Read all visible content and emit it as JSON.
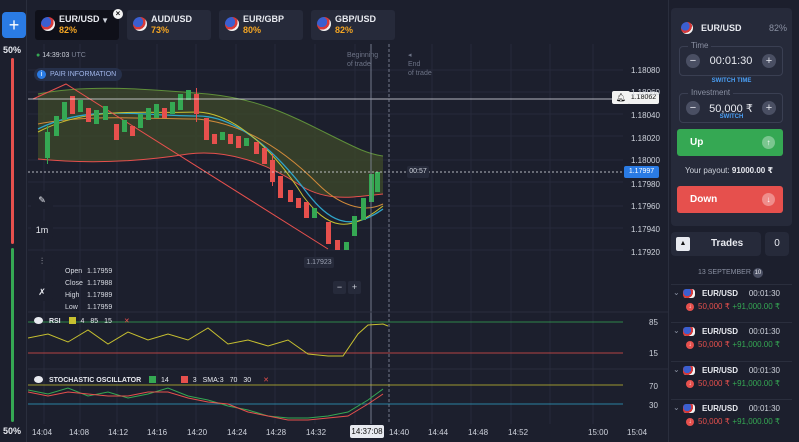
{
  "sidebar": {
    "add_label": "+",
    "top_percent": "50%",
    "bottom_percent": "50%"
  },
  "tabs": [
    {
      "name": "EUR/USD",
      "payout": "82%"
    },
    {
      "name": "AUD/USD",
      "payout": "73%"
    },
    {
      "name": "EUR/GBP",
      "payout": "80%"
    },
    {
      "name": "GBP/USD",
      "payout": "82%"
    }
  ],
  "chart": {
    "clock": "14:39:03",
    "clock_zone": "UTC",
    "pair_info_label": "PAIR INFORMATION",
    "timeframe": "1m",
    "begin_label_1": "Beginning",
    "begin_label_2": "of trade",
    "end_label_1": "End",
    "end_label_2": "of trade",
    "ohlc": {
      "open_label": "Open",
      "open": "1.17959",
      "close_label": "Close",
      "close": "1.17988",
      "high_label": "High",
      "high": "1.17989",
      "low_label": "Low",
      "low": "1.17959"
    },
    "low_marker": "1.17923",
    "countdown": "00:57",
    "current_price": "1.17997",
    "trade_price": "1.18062",
    "y_ticks": [
      "1.18080",
      "1.18060",
      "1.18040",
      "1.18020",
      "1.18000",
      "1.17980",
      "1.17960",
      "1.17940",
      "1.17920"
    ],
    "x_ticks": [
      "14:04",
      "14:08",
      "14:12",
      "14:16",
      "14:20",
      "14:24",
      "14:28",
      "14:32",
      "14:40",
      "14:44",
      "14:48",
      "14:52",
      "15:00",
      "15:04"
    ],
    "now_time": "14:37:08",
    "rsi": {
      "label": "RSI",
      "period": "4",
      "upper": "85",
      "lower": "15"
    },
    "stoch": {
      "label": "STOCHASTIC OSCILLATOR",
      "k": "14",
      "d": "3",
      "sma": "SMA:3",
      "upper": "70",
      "lower": "30"
    },
    "zoom_out": "−",
    "zoom_in": "+"
  },
  "panel": {
    "asset": "EUR/USD",
    "asset_payout": "82%",
    "time_label": "Time",
    "time_value": "00:01:30",
    "switch_time": "SWITCH TIME",
    "investment_label": "Investment",
    "investment_value": "50,000 ₹",
    "switch": "SWITCH",
    "up_label": "Up",
    "payout_label": "Your payout:",
    "payout_value": "91000.00 ₹",
    "down_label": "Down"
  },
  "trades": {
    "title": "Trades",
    "count": "0",
    "date": "13 SEPTEMBER",
    "date_badge": "10",
    "items": [
      {
        "asset": "EUR/USD",
        "duration": "00:01:30",
        "investment": "50,000 ₹",
        "profit": "+91,000.00 ₹"
      },
      {
        "asset": "EUR/USD",
        "duration": "00:01:30",
        "investment": "50,000 ₹",
        "profit": "+91,000.00 ₹"
      },
      {
        "asset": "EUR/USD",
        "duration": "00:01:30",
        "investment": "50,000 ₹",
        "profit": "+91,000.00 ₹"
      },
      {
        "asset": "EUR/USD",
        "duration": "00:01:30",
        "investment": "50,000 ₹",
        "profit": "+91,000.00 ₹"
      }
    ]
  },
  "colors": {
    "up": "#35a853",
    "down": "#e6504d",
    "accent": "#2a7be4",
    "payout": "#f5a623"
  }
}
